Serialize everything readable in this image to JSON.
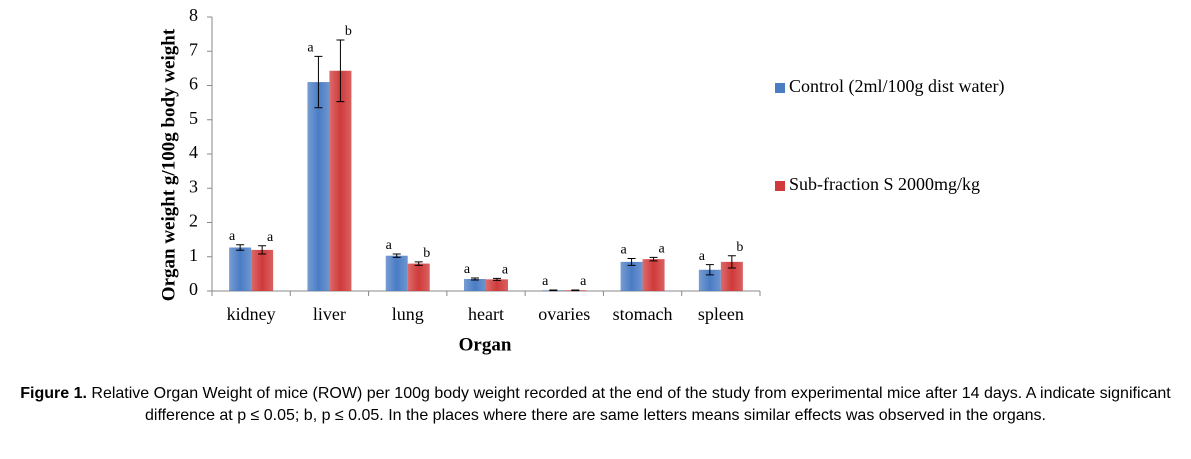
{
  "chart_data": {
    "type": "bar",
    "y_label": "Organ weight g/100g body weight",
    "x_label": "Organ",
    "categories": [
      "kidney",
      "liver",
      "lung",
      "heart",
      "ovaries",
      "stomach",
      "spleen"
    ],
    "series": [
      {
        "name": "Control (2ml/100g dist water)",
        "color": "#4a7cc4",
        "values": [
          1.27,
          6.1,
          1.03,
          0.35,
          0.02,
          0.85,
          0.62
        ],
        "errors": [
          0.08,
          0.75,
          0.05,
          0.03,
          0.01,
          0.1,
          0.15
        ],
        "annotations": [
          "a",
          "a",
          "a",
          "a",
          "a",
          "a",
          "a"
        ]
      },
      {
        "name": "Sub-fraction S 2000mg/kg",
        "color": "#d03a3a",
        "values": [
          1.2,
          6.43,
          0.8,
          0.34,
          0.02,
          0.93,
          0.85
        ],
        "errors": [
          0.12,
          0.9,
          0.05,
          0.03,
          0.01,
          0.05,
          0.18
        ],
        "annotations": [
          "a",
          "b",
          "b",
          "a",
          "a",
          "a",
          "b"
        ]
      }
    ],
    "ylim": [
      0,
      8
    ],
    "yticks": [
      0,
      1,
      2,
      3,
      4,
      5,
      6,
      7,
      8
    ],
    "legend": "right"
  },
  "caption_label": "Figure 1.",
  "caption_text": "Relative Organ Weight of mice (ROW) per 100g body weight recorded at the end of the study from experimental mice after 14 days. A indicate significant difference at p ≤ 0.05; b, p ≤ 0.05. In the places where there are same letters means similar effects was observed in the organs."
}
